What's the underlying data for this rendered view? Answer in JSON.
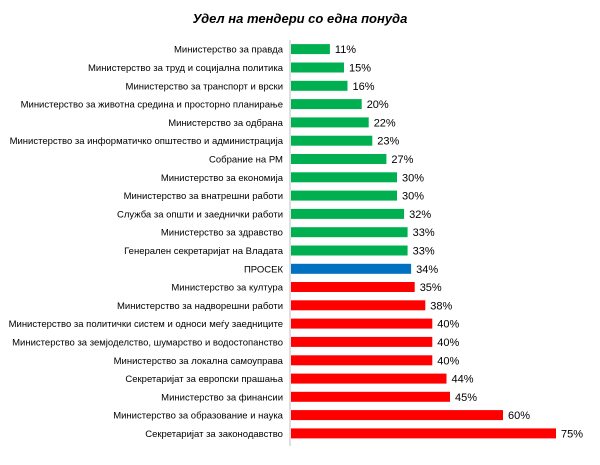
{
  "chart_data": {
    "type": "bar",
    "orientation": "horizontal",
    "title": "Удел на тендери со една понуда",
    "categories": [
      "Министерство за правда",
      "Министерство за труд и социјална политика",
      "Министерство за транспорт и врски",
      "Министерство за животна средина и просторно планирање",
      "Министерство за одбрана",
      "Министерство за информатичко општество и администрација",
      "Собрание на РМ",
      "Министерство за економија",
      "Министерство за внатрешни работи",
      "Служба за општи и заеднички работи",
      "Министерство за здравство",
      "Генерален секретаријат на Владата",
      "ПРОСЕК",
      "Министерство за култура",
      "Министерство за надворешни работи",
      "Министерство за политички систем и односи меѓу заедниците",
      "Министерство за земјоделство, шумарство и водостопанство",
      "Министерство за локална самоуправа",
      "Секретаријат за европски прашања",
      "Министерство за финансии",
      "Министерство за образование и наука",
      "Секретаријат за законодавство"
    ],
    "values": [
      11,
      15,
      16,
      20,
      22,
      23,
      27,
      30,
      30,
      32,
      33,
      33,
      34,
      35,
      38,
      40,
      40,
      40,
      44,
      45,
      60,
      75
    ],
    "value_labels": [
      "11%",
      "15%",
      "16%",
      "20%",
      "22%",
      "23%",
      "27%",
      "30%",
      "30%",
      "32%",
      "33%",
      "33%",
      "34%",
      "35%",
      "38%",
      "40%",
      "40%",
      "40%",
      "44%",
      "45%",
      "60%",
      "75%"
    ],
    "bar_colors": [
      "#00b050",
      "#00b050",
      "#00b050",
      "#00b050",
      "#00b050",
      "#00b050",
      "#00b050",
      "#00b050",
      "#00b050",
      "#00b050",
      "#00b050",
      "#00b050",
      "#0070c0",
      "#ff0000",
      "#ff0000",
      "#ff0000",
      "#ff0000",
      "#ff0000",
      "#ff0000",
      "#ff0000",
      "#ff0000",
      "#ff0000"
    ],
    "xlim": [
      0,
      75
    ],
    "grid": false,
    "legend": "none"
  }
}
